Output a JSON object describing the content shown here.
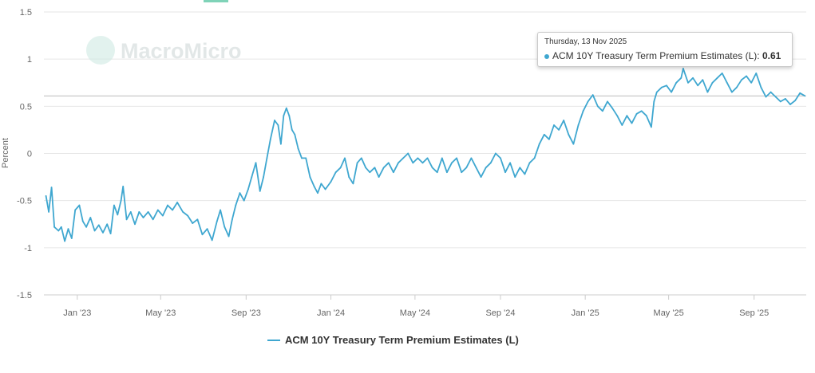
{
  "chart_data": {
    "type": "line",
    "ylabel": "Percent",
    "ylim": [
      -1.5,
      1.5
    ],
    "yticks": [
      1.5,
      1,
      0.5,
      0,
      -0.5,
      -1,
      -1.5
    ],
    "ytick_labels": [
      "1.5",
      "1",
      "0.5",
      "0",
      "-0.5",
      "-1",
      "-1.5"
    ],
    "xticks": [
      "Jan '23",
      "May '23",
      "Sep '23",
      "Jan '24",
      "May '24",
      "Sep '24",
      "Jan '25",
      "May '25",
      "Sep '25"
    ],
    "grid": true,
    "legend": "bottom-center",
    "series": [
      {
        "name": "ACM 10Y Treasury Term Premium Estimates (L)",
        "color": "#3fa7d0",
        "points": [
          [
            "2022-11-17",
            -0.45
          ],
          [
            "2022-11-21",
            -0.62
          ],
          [
            "2022-11-25",
            -0.36
          ],
          [
            "2022-11-29",
            -0.78
          ],
          [
            "2022-12-05",
            -0.82
          ],
          [
            "2022-12-09",
            -0.78
          ],
          [
            "2022-12-14",
            -0.93
          ],
          [
            "2022-12-19",
            -0.8
          ],
          [
            "2022-12-24",
            -0.9
          ],
          [
            "2022-12-29",
            -0.6
          ],
          [
            "2023-01-04",
            -0.55
          ],
          [
            "2023-01-09",
            -0.72
          ],
          [
            "2023-01-14",
            -0.78
          ],
          [
            "2023-01-20",
            -0.68
          ],
          [
            "2023-01-26",
            -0.82
          ],
          [
            "2023-02-01",
            -0.76
          ],
          [
            "2023-02-07",
            -0.84
          ],
          [
            "2023-02-13",
            -0.75
          ],
          [
            "2023-02-18",
            -0.85
          ],
          [
            "2023-02-23",
            -0.55
          ],
          [
            "2023-02-28",
            -0.65
          ],
          [
            "2023-03-05",
            -0.5
          ],
          [
            "2023-03-08",
            -0.35
          ],
          [
            "2023-03-13",
            -0.7
          ],
          [
            "2023-03-19",
            -0.62
          ],
          [
            "2023-03-25",
            -0.75
          ],
          [
            "2023-03-31",
            -0.62
          ],
          [
            "2023-04-06",
            -0.68
          ],
          [
            "2023-04-13",
            -0.62
          ],
          [
            "2023-04-20",
            -0.7
          ],
          [
            "2023-04-27",
            -0.6
          ],
          [
            "2023-05-04",
            -0.66
          ],
          [
            "2023-05-11",
            -0.55
          ],
          [
            "2023-05-18",
            -0.6
          ],
          [
            "2023-05-25",
            -0.52
          ],
          [
            "2023-06-02",
            -0.62
          ],
          [
            "2023-06-09",
            -0.66
          ],
          [
            "2023-06-16",
            -0.74
          ],
          [
            "2023-06-23",
            -0.7
          ],
          [
            "2023-06-30",
            -0.86
          ],
          [
            "2023-07-07",
            -0.8
          ],
          [
            "2023-07-14",
            -0.92
          ],
          [
            "2023-07-21",
            -0.72
          ],
          [
            "2023-07-26",
            -0.6
          ],
          [
            "2023-08-01",
            -0.78
          ],
          [
            "2023-08-07",
            -0.88
          ],
          [
            "2023-08-12",
            -0.7
          ],
          [
            "2023-08-17",
            -0.55
          ],
          [
            "2023-08-23",
            -0.42
          ],
          [
            "2023-08-29",
            -0.5
          ],
          [
            "2023-09-04",
            -0.38
          ],
          [
            "2023-09-09",
            -0.25
          ],
          [
            "2023-09-15",
            -0.1
          ],
          [
            "2023-09-21",
            -0.4
          ],
          [
            "2023-09-26",
            -0.25
          ],
          [
            "2023-10-01",
            -0.05
          ],
          [
            "2023-10-06",
            0.15
          ],
          [
            "2023-10-12",
            0.35
          ],
          [
            "2023-10-17",
            0.3
          ],
          [
            "2023-10-21",
            0.1
          ],
          [
            "2023-10-25",
            0.4
          ],
          [
            "2023-10-29",
            0.48
          ],
          [
            "2023-11-02",
            0.4
          ],
          [
            "2023-11-06",
            0.25
          ],
          [
            "2023-11-10",
            0.2
          ],
          [
            "2023-11-15",
            0.05
          ],
          [
            "2023-11-20",
            -0.05
          ],
          [
            "2023-11-26",
            -0.05
          ],
          [
            "2023-12-02",
            -0.25
          ],
          [
            "2023-12-08",
            -0.35
          ],
          [
            "2023-12-13",
            -0.42
          ],
          [
            "2023-12-18",
            -0.32
          ],
          [
            "2023-12-24",
            -0.38
          ],
          [
            "2024-01-01",
            -0.3
          ],
          [
            "2024-01-08",
            -0.2
          ],
          [
            "2024-01-15",
            -0.15
          ],
          [
            "2024-01-21",
            -0.05
          ],
          [
            "2024-01-27",
            -0.25
          ],
          [
            "2024-02-02",
            -0.32
          ],
          [
            "2024-02-08",
            -0.1
          ],
          [
            "2024-02-14",
            -0.05
          ],
          [
            "2024-02-20",
            -0.15
          ],
          [
            "2024-02-26",
            -0.2
          ],
          [
            "2024-03-04",
            -0.15
          ],
          [
            "2024-03-10",
            -0.25
          ],
          [
            "2024-03-17",
            -0.15
          ],
          [
            "2024-03-24",
            -0.1
          ],
          [
            "2024-03-31",
            -0.2
          ],
          [
            "2024-04-07",
            -0.1
          ],
          [
            "2024-04-14",
            -0.05
          ],
          [
            "2024-04-21",
            0.0
          ],
          [
            "2024-04-28",
            -0.1
          ],
          [
            "2024-05-05",
            -0.05
          ],
          [
            "2024-05-12",
            -0.1
          ],
          [
            "2024-05-19",
            -0.05
          ],
          [
            "2024-05-26",
            -0.15
          ],
          [
            "2024-06-02",
            -0.2
          ],
          [
            "2024-06-09",
            -0.05
          ],
          [
            "2024-06-16",
            -0.2
          ],
          [
            "2024-06-23",
            -0.1
          ],
          [
            "2024-06-30",
            -0.05
          ],
          [
            "2024-07-07",
            -0.2
          ],
          [
            "2024-07-14",
            -0.15
          ],
          [
            "2024-07-21",
            -0.05
          ],
          [
            "2024-07-28",
            -0.15
          ],
          [
            "2024-08-04",
            -0.25
          ],
          [
            "2024-08-11",
            -0.15
          ],
          [
            "2024-08-18",
            -0.1
          ],
          [
            "2024-08-25",
            0.0
          ],
          [
            "2024-09-01",
            -0.05
          ],
          [
            "2024-09-08",
            -0.2
          ],
          [
            "2024-09-15",
            -0.1
          ],
          [
            "2024-09-22",
            -0.25
          ],
          [
            "2024-09-29",
            -0.15
          ],
          [
            "2024-10-06",
            -0.22
          ],
          [
            "2024-10-13",
            -0.1
          ],
          [
            "2024-10-20",
            -0.05
          ],
          [
            "2024-10-27",
            0.1
          ],
          [
            "2024-11-03",
            0.2
          ],
          [
            "2024-11-10",
            0.15
          ],
          [
            "2024-11-17",
            0.3
          ],
          [
            "2024-11-24",
            0.25
          ],
          [
            "2024-12-01",
            0.35
          ],
          [
            "2024-12-08",
            0.2
          ],
          [
            "2024-12-15",
            0.1
          ],
          [
            "2024-12-22",
            0.3
          ],
          [
            "2024-12-29",
            0.45
          ],
          [
            "2025-01-05",
            0.55
          ],
          [
            "2025-01-12",
            0.62
          ],
          [
            "2025-01-19",
            0.5
          ],
          [
            "2025-01-26",
            0.45
          ],
          [
            "2025-02-02",
            0.55
          ],
          [
            "2025-02-09",
            0.48
          ],
          [
            "2025-02-16",
            0.4
          ],
          [
            "2025-02-23",
            0.3
          ],
          [
            "2025-03-02",
            0.4
          ],
          [
            "2025-03-09",
            0.32
          ],
          [
            "2025-03-16",
            0.42
          ],
          [
            "2025-03-23",
            0.45
          ],
          [
            "2025-03-30",
            0.4
          ],
          [
            "2025-04-06",
            0.28
          ],
          [
            "2025-04-10",
            0.55
          ],
          [
            "2025-04-14",
            0.65
          ],
          [
            "2025-04-21",
            0.7
          ],
          [
            "2025-04-28",
            0.72
          ],
          [
            "2025-05-05",
            0.65
          ],
          [
            "2025-05-12",
            0.75
          ],
          [
            "2025-05-19",
            0.8
          ],
          [
            "2025-05-22",
            0.9
          ],
          [
            "2025-05-29",
            0.75
          ],
          [
            "2025-06-05",
            0.8
          ],
          [
            "2025-06-12",
            0.72
          ],
          [
            "2025-06-19",
            0.78
          ],
          [
            "2025-06-26",
            0.65
          ],
          [
            "2025-07-03",
            0.75
          ],
          [
            "2025-07-10",
            0.8
          ],
          [
            "2025-07-17",
            0.85
          ],
          [
            "2025-07-24",
            0.75
          ],
          [
            "2025-07-31",
            0.65
          ],
          [
            "2025-08-07",
            0.7
          ],
          [
            "2025-08-14",
            0.78
          ],
          [
            "2025-08-21",
            0.82
          ],
          [
            "2025-08-28",
            0.75
          ],
          [
            "2025-09-04",
            0.85
          ],
          [
            "2025-09-11",
            0.7
          ],
          [
            "2025-09-18",
            0.6
          ],
          [
            "2025-09-25",
            0.65
          ],
          [
            "2025-10-02",
            0.6
          ],
          [
            "2025-10-09",
            0.55
          ],
          [
            "2025-10-16",
            0.58
          ],
          [
            "2025-10-23",
            0.52
          ],
          [
            "2025-10-30",
            0.56
          ],
          [
            "2025-11-06",
            0.64
          ],
          [
            "2025-11-13",
            0.61
          ]
        ]
      }
    ]
  },
  "watermark": "MacroMicro",
  "tooltip": {
    "date": "Thursday, 13 Nov 2025",
    "series": "ACM 10Y Treasury Term Premium Estimates (L):",
    "value": "0.61"
  },
  "legend": {
    "label": "ACM 10Y Treasury Term Premium Estimates (L)"
  }
}
